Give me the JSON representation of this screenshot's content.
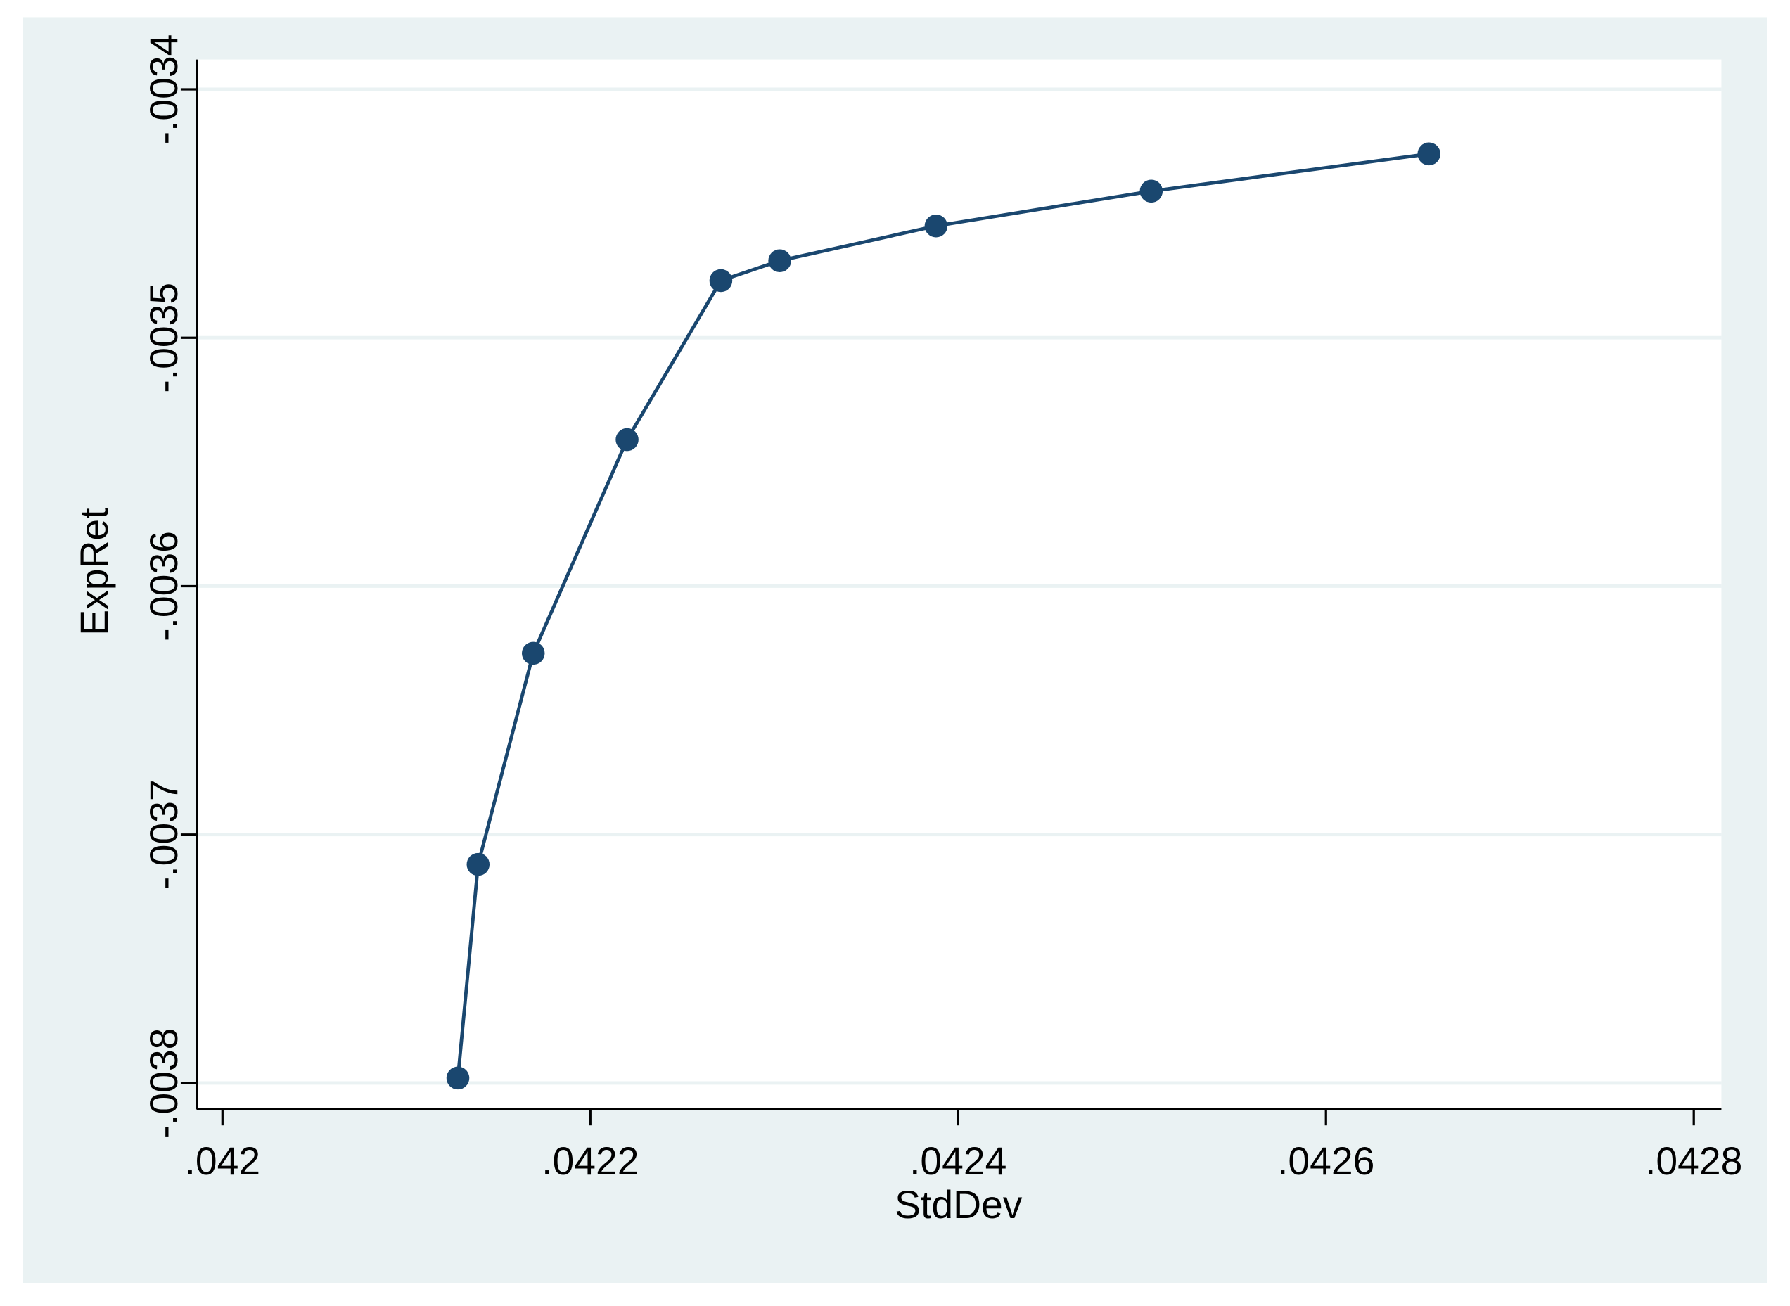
{
  "chart_data": {
    "type": "line",
    "x_label": "StdDev",
    "y_label": "ExpRet",
    "series": [
      {
        "name": "ExpRet",
        "color": "#1a476f",
        "x": [
          0.042128,
          0.042139,
          0.042169,
          0.04222,
          0.042271,
          0.042303,
          0.042388,
          0.042505,
          0.042656
        ],
        "values": [
          -0.003798,
          -0.003712,
          -0.003627,
          -0.003541,
          -0.003477,
          -0.003469,
          -0.003455,
          -0.003441,
          -0.003426
        ]
      }
    ],
    "xlim": [
      0.041986,
      0.042815
    ],
    "ylim": [
      -0.0038106,
      -0.003388
    ],
    "xticks": [
      {
        "value": 0.042,
        "label": ".042"
      },
      {
        "value": 0.0422,
        "label": ".0422"
      },
      {
        "value": 0.0424,
        "label": ".0424"
      },
      {
        "value": 0.0426,
        "label": ".0426"
      },
      {
        "value": 0.0428,
        "label": ".0428"
      }
    ],
    "yticks": [
      {
        "value": -0.0034,
        "label": "-.0034"
      },
      {
        "value": -0.0035,
        "label": "-.0035"
      },
      {
        "value": -0.0036,
        "label": "-.0036"
      },
      {
        "value": -0.0037,
        "label": "-.0037"
      },
      {
        "value": -0.0038,
        "label": "-.0038"
      }
    ],
    "grid": true,
    "background": "#eaf2f3",
    "plot_background": "#ffffff",
    "grid_color": "#eaf2f3"
  }
}
